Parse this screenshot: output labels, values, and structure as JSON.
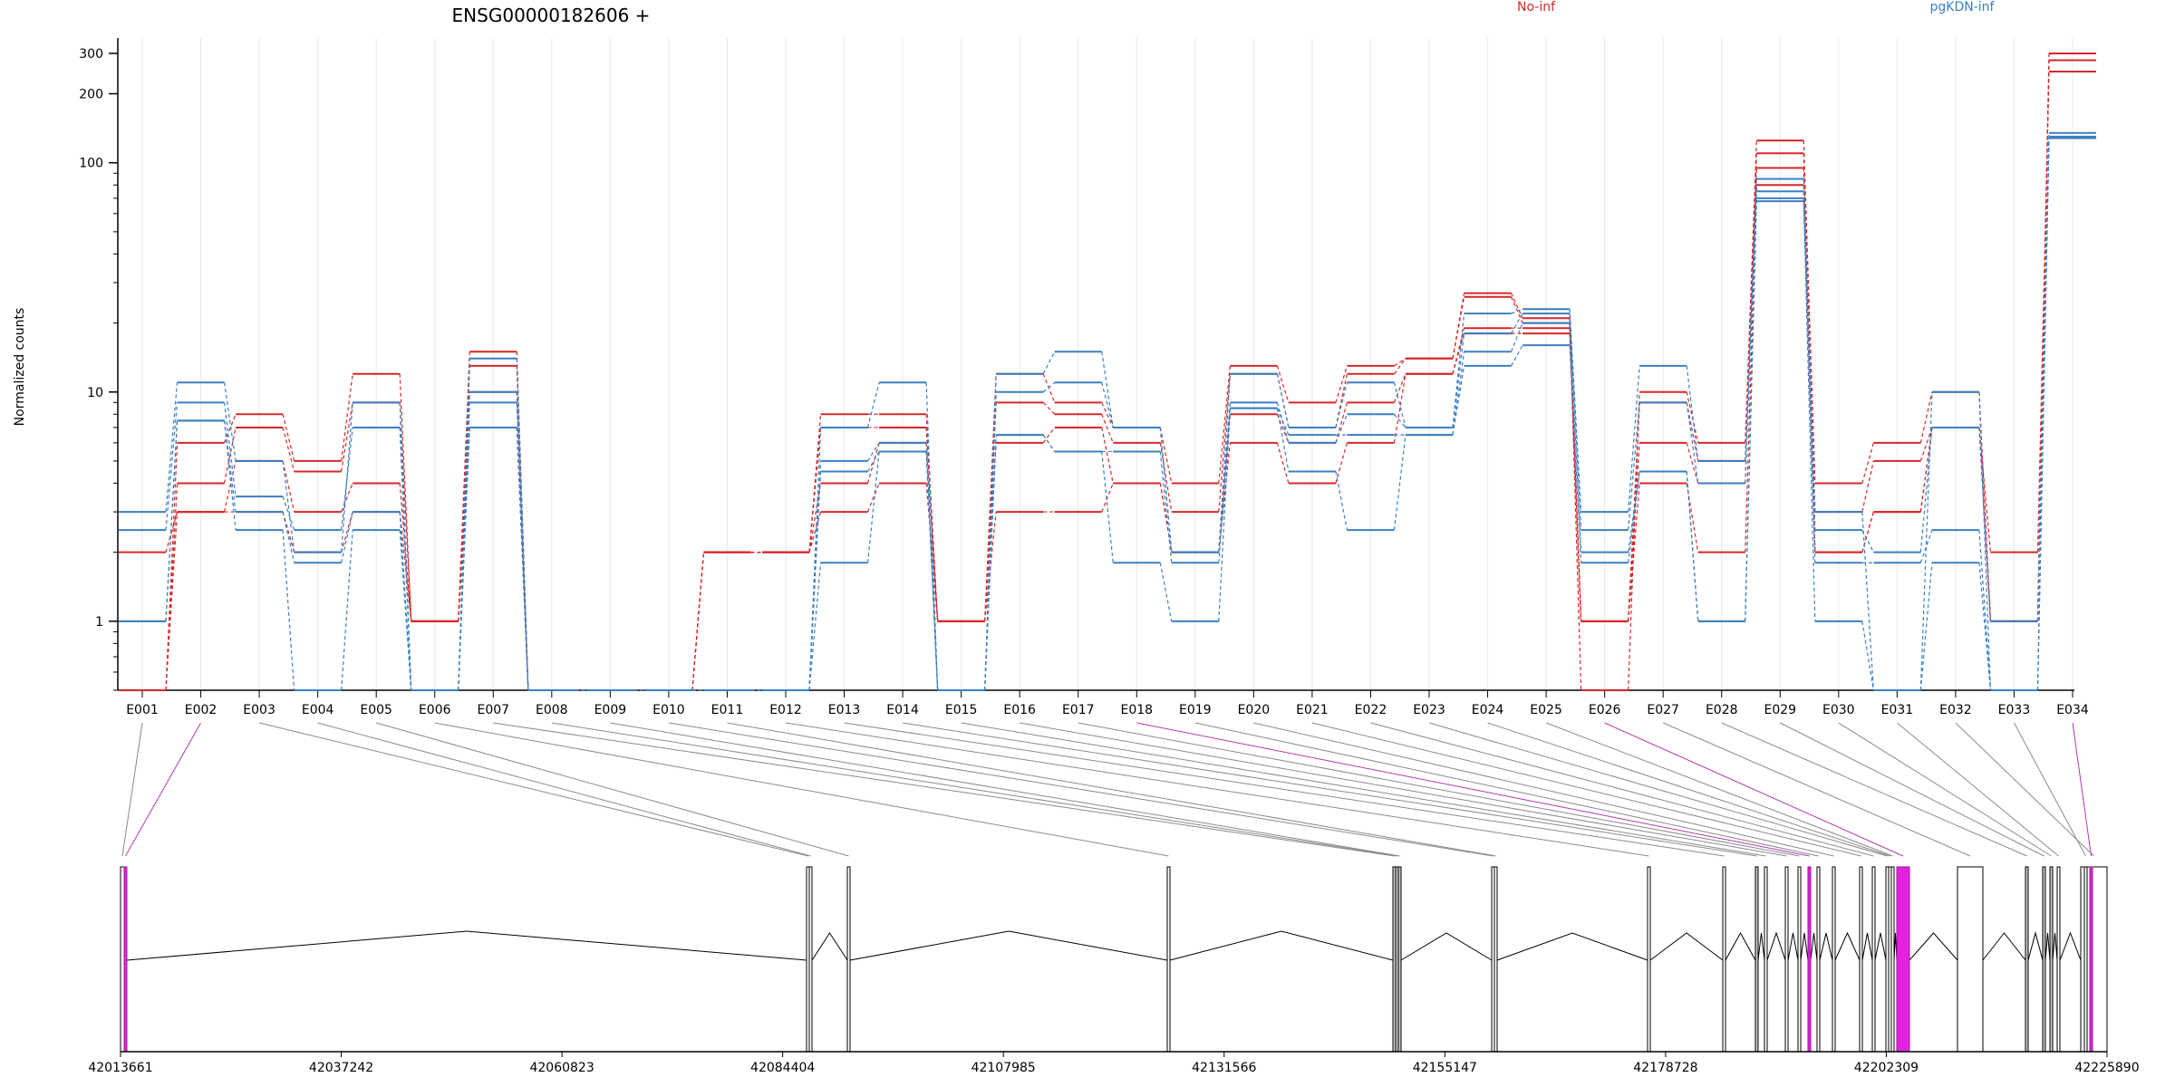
{
  "chart_data": {
    "type": "line",
    "title": "ENSG00000182606 +",
    "ylabel": "Normalized counts",
    "yscale": "log",
    "ylim": [
      0.5,
      350
    ],
    "yticks": [
      1,
      10,
      100,
      200,
      300
    ],
    "ytick_labels": [
      "1",
      "10",
      "100",
      "200",
      "300"
    ],
    "categories": [
      "E001",
      "E002",
      "E003",
      "E004",
      "E005",
      "E006",
      "E007",
      "E008",
      "E009",
      "E010",
      "E011",
      "E012",
      "E013",
      "E014",
      "E015",
      "E016",
      "E017",
      "E018",
      "E019",
      "E020",
      "E021",
      "E022",
      "E023",
      "E024",
      "E025",
      "E026",
      "E027",
      "E028",
      "E029",
      "E030",
      "E031",
      "E032",
      "E033",
      "E034"
    ],
    "legend": [
      {
        "label": "No-inf",
        "color": "#d62728"
      },
      {
        "label": "pgKDN-inf",
        "color": "#3a7fc1"
      }
    ],
    "series": [
      {
        "group": "No-inf",
        "color": "#d62728",
        "values": [
          0.5,
          6,
          8,
          5,
          12,
          1,
          15,
          0.5,
          0.5,
          0.5,
          2,
          2,
          8,
          8,
          1,
          12,
          9,
          7,
          4,
          13,
          9,
          13,
          14,
          27,
          21,
          0.5,
          10,
          6,
          125,
          4,
          6,
          10,
          1,
          300
        ]
      },
      {
        "group": "No-inf",
        "color": "#d62728",
        "values": [
          0.5,
          4,
          7,
          4.5,
          9,
          1,
          13,
          0.5,
          0.5,
          0.5,
          2,
          2,
          7,
          7,
          1,
          9,
          8,
          6,
          3,
          12,
          7,
          12,
          14,
          26,
          20,
          1,
          9,
          5,
          110,
          3,
          5,
          7,
          1,
          280
        ]
      },
      {
        "group": "No-inf",
        "color": "#d62728",
        "values": [
          2,
          3,
          5,
          3,
          4,
          1,
          10,
          0.5,
          0.5,
          0.5,
          2,
          2,
          4,
          6,
          1,
          6,
          7,
          4,
          2,
          8,
          6,
          9,
          12,
          19,
          19,
          1,
          6,
          4,
          95,
          2,
          3,
          7,
          1,
          280
        ]
      },
      {
        "group": "No-inf",
        "color": "#d62728",
        "values": [
          0.5,
          3,
          3,
          2,
          3,
          1,
          7,
          0.5,
          0.5,
          0.5,
          2,
          2,
          3,
          4,
          1,
          3,
          3,
          4,
          2,
          6,
          4,
          6,
          12,
          18,
          18,
          1,
          4,
          2,
          80,
          2,
          3,
          7,
          2,
          250
        ]
      },
      {
        "group": "pgKDN-inf",
        "color": "#3a7fc1",
        "values": [
          3,
          11,
          5,
          2,
          9,
          0.5,
          14,
          0.5,
          0.5,
          0.5,
          0.5,
          0.5,
          7,
          11,
          0.5,
          12,
          15,
          7,
          2,
          12,
          7,
          11,
          7,
          22,
          23,
          3,
          13,
          5,
          85,
          3,
          0.5,
          10,
          0.5,
          135
        ]
      },
      {
        "group": "pgKDN-inf",
        "color": "#3a7fc1",
        "values": [
          2.5,
          9,
          3.5,
          2.5,
          7,
          0.5,
          10,
          0.5,
          0.5,
          0.5,
          0.5,
          0.5,
          5,
          6,
          0.5,
          10,
          11,
          7,
          2,
          9,
          6,
          8,
          7,
          18,
          22,
          2.5,
          9,
          4,
          75,
          2.5,
          2,
          7,
          1,
          130
        ]
      },
      {
        "group": "pgKDN-inf",
        "color": "#3a7fc1",
        "values": [
          1,
          7.5,
          3,
          1.8,
          3,
          0.5,
          9,
          0.5,
          0.5,
          0.5,
          0.5,
          0.5,
          4.5,
          5.5,
          0.5,
          6.5,
          5.5,
          5.5,
          1.8,
          8.5,
          6.5,
          6.5,
          6.5,
          15,
          20,
          2,
          4.5,
          1,
          70,
          1.8,
          1.8,
          2.5,
          0.5,
          128
        ]
      },
      {
        "group": "pgKDN-inf",
        "color": "#3a7fc1",
        "values": [
          1,
          7.5,
          2.5,
          0.5,
          2.5,
          0.5,
          7,
          0.5,
          0.5,
          0.5,
          0.5,
          0.5,
          1.8,
          5.5,
          0.5,
          6.5,
          5.5,
          1.8,
          1,
          8.5,
          4.5,
          2.5,
          6.5,
          13,
          16,
          1.8,
          4.5,
          1,
          68,
          1,
          0.5,
          1.8,
          0.5,
          128
        ]
      }
    ],
    "gene_model": {
      "coord_ticks": [
        "42013661",
        "42037242",
        "42060823",
        "42084404",
        "42107985",
        "42131566",
        "42155147",
        "42178728",
        "42202309",
        "42225890"
      ],
      "exons": [
        {
          "id": "E001",
          "kind": "exon"
        },
        {
          "id": "E002",
          "kind": "highlight"
        },
        {
          "id": "E003",
          "kind": "exon"
        },
        {
          "id": "E004",
          "kind": "exon"
        },
        {
          "id": "E005",
          "kind": "exon"
        },
        {
          "id": "E006",
          "kind": "exon"
        },
        {
          "id": "E007",
          "kind": "gray"
        },
        {
          "id": "E008",
          "kind": "gray"
        },
        {
          "id": "E009",
          "kind": "gray"
        },
        {
          "id": "E010",
          "kind": "exon"
        },
        {
          "id": "E011",
          "kind": "exon"
        },
        {
          "id": "E012",
          "kind": "exon"
        },
        {
          "id": "E013",
          "kind": "exon"
        },
        {
          "id": "E014",
          "kind": "gray"
        },
        {
          "id": "E015",
          "kind": "exon"
        },
        {
          "id": "E016",
          "kind": "exon"
        },
        {
          "id": "E017",
          "kind": "exon"
        },
        {
          "id": "E018",
          "kind": "highlight"
        },
        {
          "id": "E019",
          "kind": "exon"
        },
        {
          "id": "E020",
          "kind": "exon"
        },
        {
          "id": "E021",
          "kind": "exon"
        },
        {
          "id": "E022",
          "kind": "exon"
        },
        {
          "id": "E023",
          "kind": "exon"
        },
        {
          "id": "E024",
          "kind": "exon"
        },
        {
          "id": "E025",
          "kind": "exon"
        },
        {
          "id": "E026",
          "kind": "highlight"
        },
        {
          "id": "E027",
          "kind": "exon"
        },
        {
          "id": "E028",
          "kind": "gray"
        },
        {
          "id": "E029",
          "kind": "gray"
        },
        {
          "id": "E030",
          "kind": "gray"
        },
        {
          "id": "E031",
          "kind": "exon"
        },
        {
          "id": "E032",
          "kind": "exon"
        },
        {
          "id": "E033",
          "kind": "exon"
        },
        {
          "id": "E034",
          "kind": "highlight"
        }
      ]
    }
  }
}
